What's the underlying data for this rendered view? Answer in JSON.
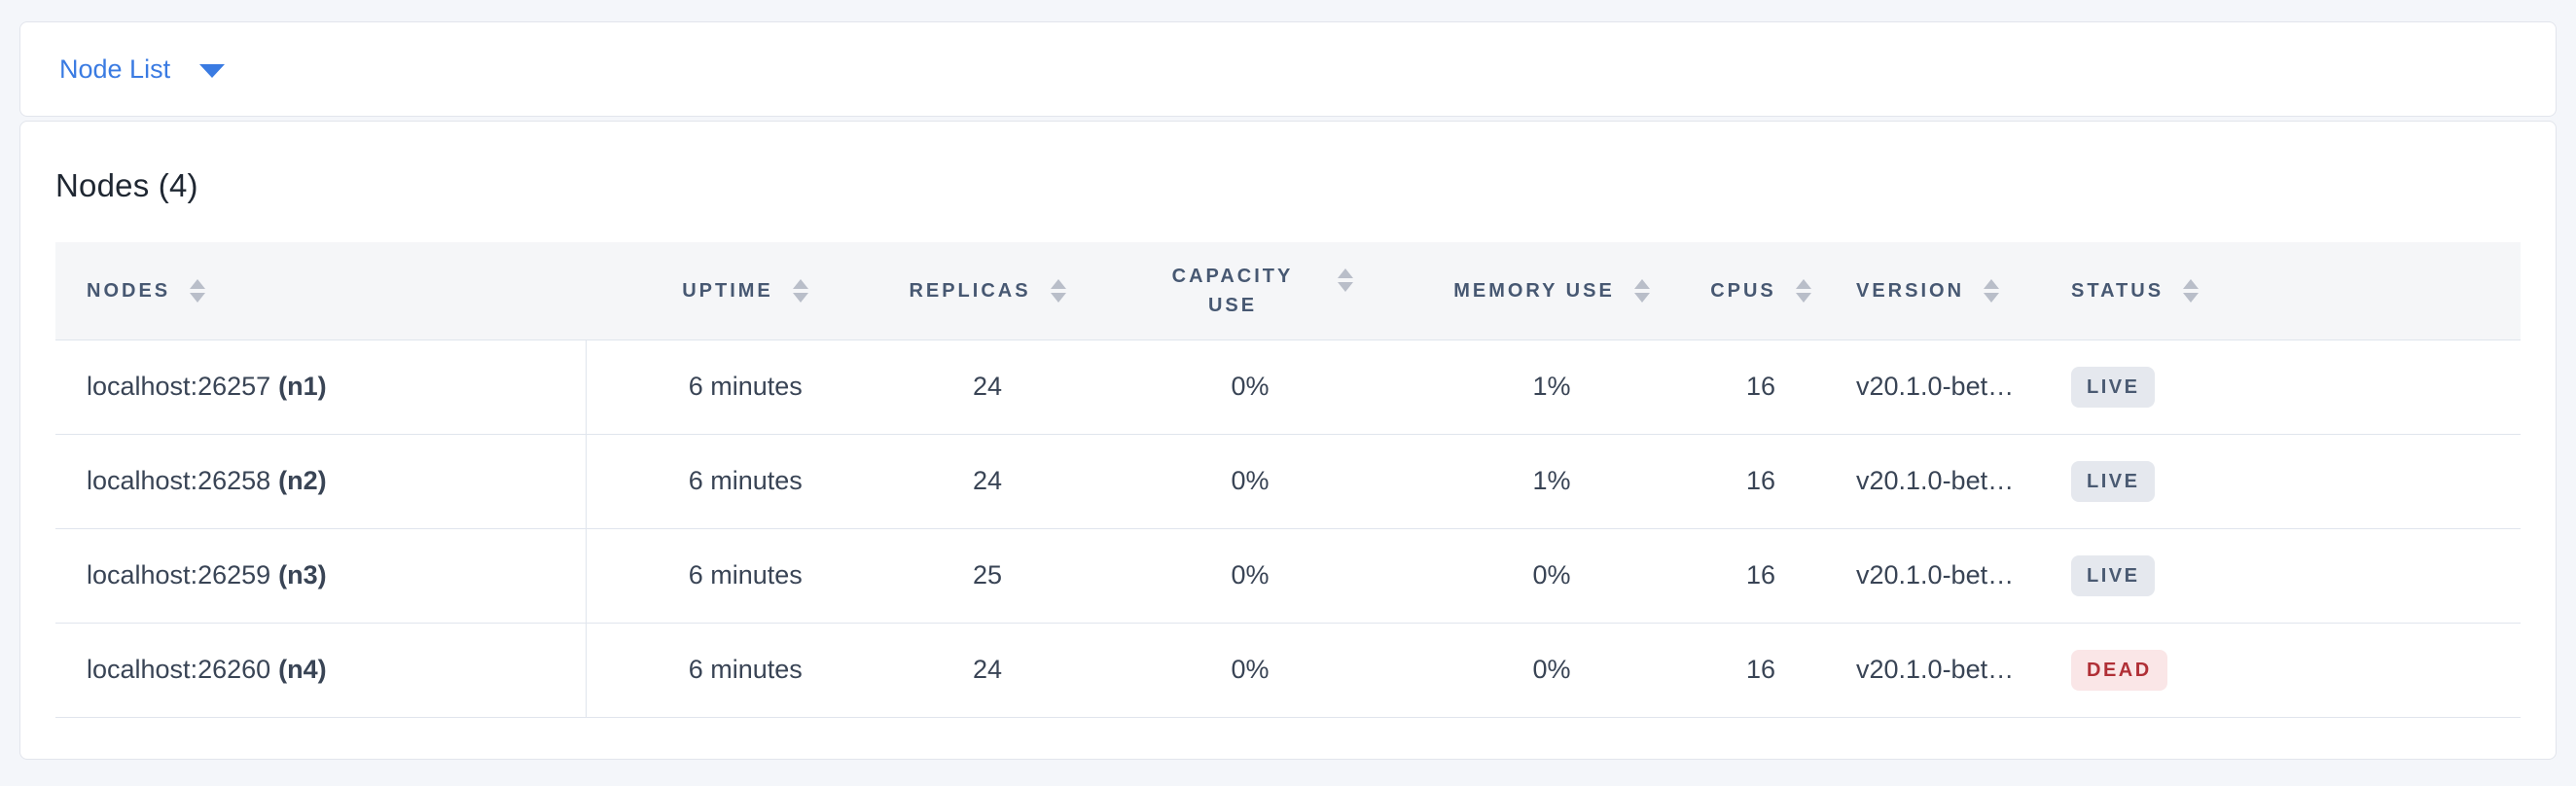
{
  "topbar": {
    "dropdown_label": "Node List"
  },
  "main": {
    "title": "Nodes (4)"
  },
  "table": {
    "columns": [
      {
        "key": "nodes",
        "label": "NODES",
        "align": "left",
        "sortable": true
      },
      {
        "key": "uptime",
        "label": "UPTIME",
        "align": "center",
        "sortable": true
      },
      {
        "key": "replicas",
        "label": "REPLICAS",
        "align": "center",
        "sortable": true
      },
      {
        "key": "capacity",
        "label": "CAPACITY USE",
        "align": "center",
        "sortable": true,
        "wrap": true
      },
      {
        "key": "memory",
        "label": "MEMORY USE",
        "align": "center",
        "sortable": true
      },
      {
        "key": "cpus",
        "label": "CPUS",
        "align": "center",
        "sortable": true
      },
      {
        "key": "version",
        "label": "VERSION",
        "align": "left",
        "sortable": true
      },
      {
        "key": "status",
        "label": "STATUS",
        "align": "left",
        "sortable": true
      },
      {
        "key": "filler",
        "label": "",
        "align": "left",
        "sortable": false
      }
    ],
    "rows": [
      {
        "address": "localhost:26257",
        "node_id": "(n1)",
        "uptime": "6 minutes",
        "replicas": "24",
        "capacity": "0%",
        "memory": "1%",
        "cpus": "16",
        "version": "v20.1.0-bet…",
        "status": "LIVE"
      },
      {
        "address": "localhost:26258",
        "node_id": "(n2)",
        "uptime": "6 minutes",
        "replicas": "24",
        "capacity": "0%",
        "memory": "1%",
        "cpus": "16",
        "version": "v20.1.0-bet…",
        "status": "LIVE"
      },
      {
        "address": "localhost:26259",
        "node_id": "(n3)",
        "uptime": "6 minutes",
        "replicas": "25",
        "capacity": "0%",
        "memory": "0%",
        "cpus": "16",
        "version": "v20.1.0-bet…",
        "status": "LIVE"
      },
      {
        "address": "localhost:26260",
        "node_id": "(n4)",
        "uptime": "6 minutes",
        "replicas": "24",
        "capacity": "0%",
        "memory": "0%",
        "cpus": "16",
        "version": "v20.1.0-bet…",
        "status": "DEAD"
      }
    ],
    "status_colors": {
      "LIVE": {
        "bg": "#e5e8ee",
        "text": "#4a5a72"
      },
      "DEAD": {
        "bg": "#fae6e7",
        "text": "#b02f36"
      }
    }
  },
  "colors": {
    "page_bg": "#f4f6fa",
    "card_bg": "#ffffff",
    "card_border": "#e2e5ec",
    "accent_blue": "#3a7be2",
    "heading_text": "#1f2732",
    "header_text": "#475872",
    "header_bg": "#f5f6f8",
    "body_text": "#394455",
    "row_border": "#e0e5ed",
    "sort_icon": "#b9bec9"
  }
}
